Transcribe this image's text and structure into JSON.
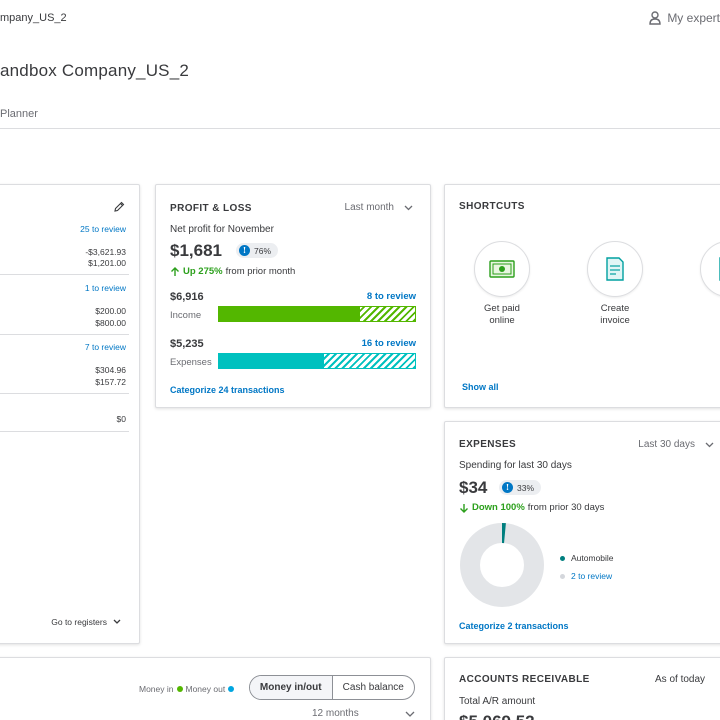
{
  "header": {
    "company_short": "mpany_US_2",
    "my_experts": "My expert",
    "page_title": "andbox Company_US_2",
    "tab_planner": "Planner"
  },
  "bank_accounts": {
    "row1_review": "25 to review",
    "row1_bank": "-$3,621.93",
    "row1_books": "$1,201.00",
    "row2_review": "1 to review",
    "row2_bank": "$200.00",
    "row2_books": "$800.00",
    "row3_review": "7 to review",
    "row3_bank": "$304.96",
    "row3_books": "$157.72",
    "row4_value": "$0",
    "go_to_registers": "Go to registers"
  },
  "profit_loss": {
    "title": "PROFIT & LOSS",
    "period": "Last month",
    "subtitle": "Net profit for November",
    "net_profit": "$1,681",
    "badge_pct": "76%",
    "trend_bold": "Up 275%",
    "trend_rest": "from prior month",
    "income_amount": "$6,916",
    "income_label": "Income",
    "income_review": "8 to review",
    "income_reviewed_fraction": 0.71,
    "expenses_amount": "$5,235",
    "expenses_label": "Expenses",
    "expenses_review": "16 to review",
    "expenses_reviewed_fraction": 0.53,
    "categorize_link": "Categorize 24 transactions"
  },
  "shortcuts": {
    "title": "SHORTCUTS",
    "items": [
      {
        "line1": "Get paid",
        "line2": "online",
        "icon": "money-bill-icon"
      },
      {
        "line1": "Create",
        "line2": "invoice",
        "icon": "invoice-icon"
      },
      {
        "line1": "Re",
        "line2": "exp",
        "icon": "receipt-icon"
      }
    ],
    "show_all": "Show all"
  },
  "expenses_card": {
    "title": "EXPENSES",
    "period": "Last 30 days",
    "subtitle": "Spending for last 30 days",
    "amount": "$34",
    "badge_pct": "33%",
    "trend_bold": "Down 100%",
    "trend_rest": "from prior 30 days",
    "legend": [
      {
        "label": "Automobile",
        "color": "#007f7f"
      },
      {
        "label": "2 to review",
        "color": "#d4d7dc"
      }
    ],
    "automobile_fraction": 0.015,
    "categorize_link": "Categorize 2 transactions"
  },
  "cash_flow": {
    "money_in": "Money in",
    "money_out": "Money out",
    "toggle_selected": "Money in/out",
    "toggle_other": "Cash balance",
    "range": "12 months",
    "colors": {
      "money_in": "#53b700",
      "money_out": "#00a6e0"
    }
  },
  "accounts_receivable": {
    "title": "ACCOUNTS RECEIVABLE",
    "as_of": "As of today",
    "subtitle": "Total A/R amount",
    "amount": "$5,069.52"
  },
  "colors": {
    "income": "#53b700",
    "expenses": "#00c1bf",
    "link": "#0077c5",
    "up_trend": "#2ca01c"
  }
}
